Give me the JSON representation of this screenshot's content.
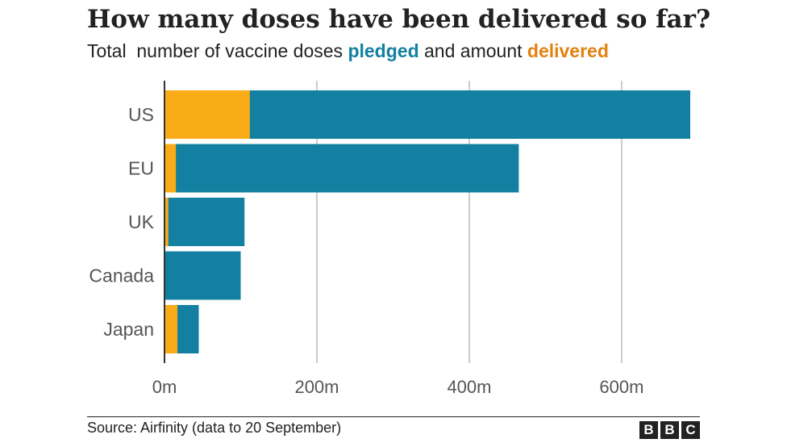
{
  "header": {
    "title": "How many doses have been delivered so far?",
    "subtitle_prefix": "Total  number of vaccine doses ",
    "subtitle_pledged": "pledged",
    "subtitle_middle": " and amount ",
    "subtitle_delivered": "delivered"
  },
  "footer": {
    "source": "Source: Airfinity (data to 20 September)",
    "logo_letters": [
      "B",
      "B",
      "C"
    ]
  },
  "colors": {
    "pledged": "#1380A1",
    "delivered": "#FAAB18",
    "grid": "#CBCBCB"
  },
  "chart_data": {
    "type": "bar",
    "orientation": "horizontal",
    "categories": [
      "US",
      "EU",
      "UK",
      "Canada",
      "Japan"
    ],
    "series": [
      {
        "name": "pledged",
        "values": [
          690,
          465,
          105,
          100,
          45
        ]
      },
      {
        "name": "delivered",
        "values": [
          112,
          15,
          5,
          1,
          17
        ]
      }
    ],
    "xlim": [
      0,
      690
    ],
    "x_ticks": [
      0,
      200,
      400,
      600
    ],
    "x_tick_labels": [
      "0m",
      "200m",
      "400m",
      "600m"
    ],
    "grid": true,
    "bars_overlaid": true
  }
}
